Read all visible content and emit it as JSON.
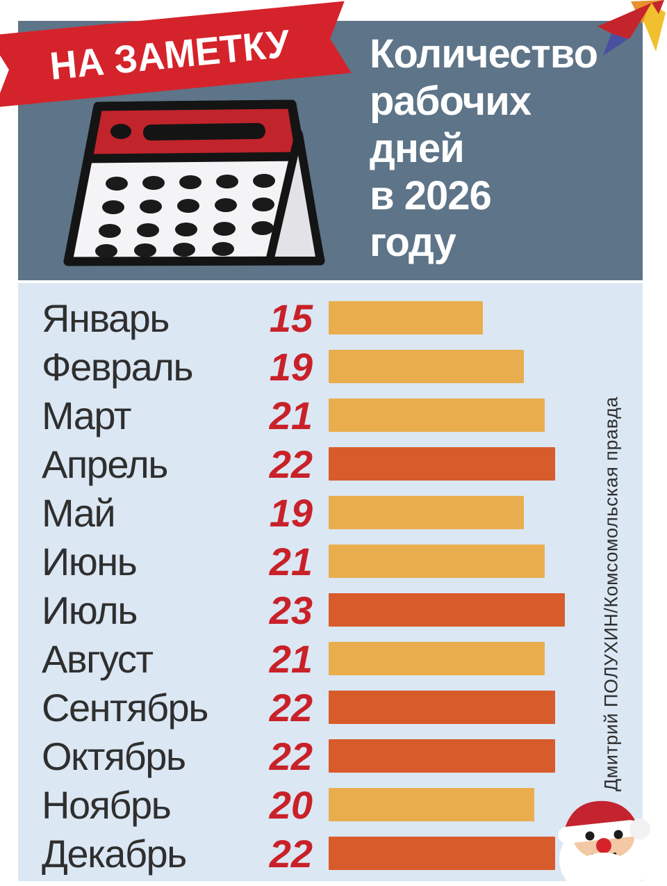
{
  "colors": {
    "header_bg": "#5e7488",
    "panel_bg": "#dbe7f3",
    "ribbon_red": "#d5232b",
    "value_red": "#c92129",
    "bar_light": "#e9ad4e",
    "bar_dark": "#d85b2b",
    "month_text": "#2f2f2f",
    "title_text": "#ffffff",
    "calendar_band_red": "#c2242c"
  },
  "ribbon": {
    "label": "НА ЗАМЕТКУ"
  },
  "header": {
    "title": "Количество\nрабочих\nдней\nв 2026\nгоду"
  },
  "credit": {
    "text": "Дмитрий ПОЛУХИН/Комсомольская правда"
  },
  "icons": {
    "calendar": "flip-calendar-icon",
    "logo": "origami-bird-logo",
    "mascot": "santa-claus-face-icon"
  },
  "chart_data": {
    "type": "bar",
    "orientation": "horizontal",
    "title": "Количество рабочих дней в 2026 году",
    "categories": [
      "Январь",
      "Февраль",
      "Март",
      "Апрель",
      "Май",
      "Июнь",
      "Июль",
      "Август",
      "Сентябрь",
      "Октябрь",
      "Ноябрь",
      "Декабрь"
    ],
    "values": [
      15,
      19,
      21,
      22,
      19,
      21,
      23,
      21,
      22,
      22,
      20,
      22
    ],
    "bar_shades": [
      "light",
      "light",
      "light",
      "dark",
      "light",
      "light",
      "dark",
      "light",
      "dark",
      "dark",
      "light",
      "dark"
    ],
    "xlim": [
      0,
      23
    ],
    "grid": false,
    "legend": false,
    "value_labels_shown": true
  }
}
